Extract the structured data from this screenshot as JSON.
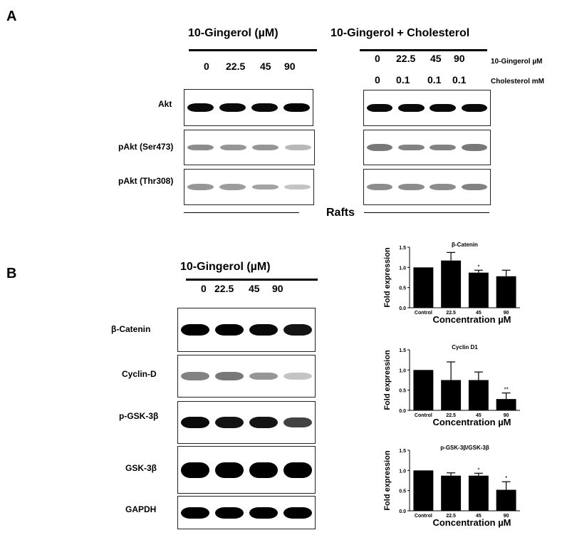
{
  "panels": {
    "a": "A",
    "b": "B"
  },
  "panel_a": {
    "left_title": "10-Gingerol (µM)",
    "right_title": "10-Gingerol + Cholesterol",
    "left_lanes": [
      "0",
      "22.5",
      "45",
      "90"
    ],
    "right_lanes_gingerol": [
      "0",
      "22.5",
      "45",
      "90"
    ],
    "right_lanes_cholesterol": [
      "0",
      "0.1",
      "0.1",
      "0.1"
    ],
    "right_row1_label": "10-Gingerol µM",
    "right_row2_label": "Cholesterol mM",
    "blot_labels": [
      "Akt",
      "pAkt (Ser473)",
      "pAkt (Thr308)"
    ],
    "footer_label": "Rafts"
  },
  "panel_b": {
    "title": "10-Gingerol (µM)",
    "lanes": [
      "0",
      "22.5",
      "45",
      "90"
    ],
    "blot_labels": [
      "β-Catenin",
      "Cyclin-D",
      "p-GSK-3β",
      "GSK-3β",
      "GAPDH"
    ]
  },
  "chart_data": [
    {
      "type": "bar",
      "title": "β-Catenin",
      "categories": [
        "Control",
        "22.5",
        "45",
        "90"
      ],
      "values": [
        1.0,
        1.17,
        0.87,
        0.78
      ],
      "errors": [
        0,
        0.2,
        0.06,
        0.15
      ],
      "significance": [
        "",
        "",
        "*",
        ""
      ],
      "ylabel": "Fold expression",
      "xlabel": "Concentration µM",
      "ylim": [
        0,
        1.5
      ],
      "yticks": [
        "0.0",
        "0.5",
        "1.0",
        "1.5"
      ]
    },
    {
      "type": "bar",
      "title": "Cyclin D1",
      "categories": [
        "Control",
        "22.5",
        "45",
        "90"
      ],
      "values": [
        1.0,
        0.75,
        0.75,
        0.28
      ],
      "errors": [
        0,
        0.45,
        0.2,
        0.15
      ],
      "significance": [
        "",
        "",
        "",
        "**"
      ],
      "ylabel": "Fold expression",
      "xlabel": "Concentration µM",
      "ylim": [
        0,
        1.5
      ],
      "yticks": [
        "0.0",
        "0.5",
        "1.0",
        "1.5"
      ]
    },
    {
      "type": "bar",
      "title": "p-GSK-3β/GSK-3β",
      "categories": [
        "Control",
        "22.5",
        "45",
        "90"
      ],
      "values": [
        1.0,
        0.87,
        0.87,
        0.52
      ],
      "errors": [
        0,
        0.07,
        0.06,
        0.2
      ],
      "significance": [
        "",
        "",
        "*",
        "*"
      ],
      "ylabel": "Fold expression",
      "xlabel": "Concentration µM",
      "ylim": [
        0,
        1.5
      ],
      "yticks": [
        "0.0",
        "0.5",
        "1.0",
        "1.5"
      ]
    }
  ],
  "colors": {
    "bar": "#000000",
    "band": "#000000"
  },
  "blot_intensity": {
    "a_left": [
      [
        0.95,
        0.95,
        0.95,
        0.98
      ],
      [
        0.35,
        0.3,
        0.3,
        0.15
      ],
      [
        0.3,
        0.28,
        0.25,
        0.1
      ]
    ],
    "a_right": [
      [
        0.95,
        0.95,
        0.95,
        0.95
      ],
      [
        0.45,
        0.4,
        0.4,
        0.45
      ],
      [
        0.35,
        0.35,
        0.35,
        0.4
      ]
    ],
    "b": [
      [
        1,
        1,
        0.95,
        0.9
      ],
      [
        0.4,
        0.45,
        0.3,
        0.1
      ],
      [
        0.95,
        0.9,
        0.9,
        0.7
      ],
      [
        1,
        1,
        1,
        1
      ],
      [
        1,
        1,
        1,
        1
      ]
    ]
  }
}
